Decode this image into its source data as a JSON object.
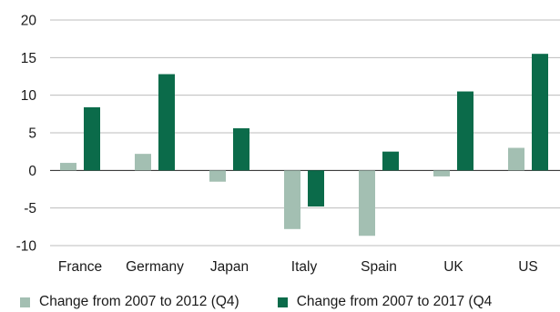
{
  "chart_data": {
    "type": "bar",
    "categories": [
      "France",
      "Germany",
      "Japan",
      "Italy",
      "Spain",
      "UK",
      "US"
    ],
    "series": [
      {
        "name": "Change from 2007 to 2012 (Q4)",
        "color": "#a3bfb2",
        "values": [
          1.0,
          2.2,
          -1.5,
          -7.8,
          -8.7,
          -0.8,
          3.0
        ]
      },
      {
        "name": "Change from 2007 to 2017 (Q4",
        "color": "#0b6b4a",
        "values": [
          8.4,
          12.8,
          5.6,
          -4.8,
          2.5,
          10.5,
          15.5
        ]
      }
    ],
    "yticks": [
      20,
      15,
      10,
      5,
      0,
      -5,
      -10
    ],
    "ylim": [
      -10,
      20
    ],
    "grid": true,
    "legend_position": "bottom"
  }
}
